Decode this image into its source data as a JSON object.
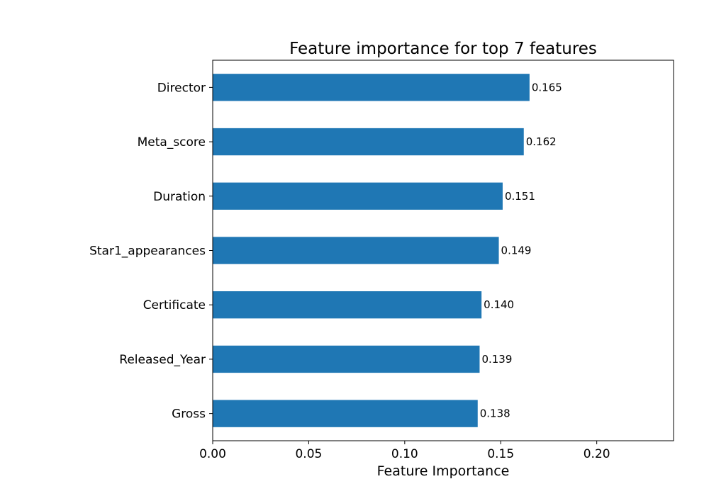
{
  "chart_data": {
    "type": "bar",
    "orientation": "horizontal",
    "title": "Feature importance for top 7 features",
    "xlabel": "Feature Importance",
    "ylabel": "",
    "categories": [
      "Director",
      "Meta_score",
      "Duration",
      "Star1_appearances",
      "Certificate",
      "Released_Year",
      "Gross"
    ],
    "values": [
      0.165,
      0.162,
      0.151,
      0.149,
      0.14,
      0.139,
      0.138
    ],
    "value_labels": [
      "0.165",
      "0.162",
      "0.151",
      "0.149",
      "0.140",
      "0.139",
      "0.138"
    ],
    "xlim": [
      0,
      0.24
    ],
    "x_ticks": [
      0,
      0.05,
      0.1,
      0.15,
      0.2
    ],
    "x_tick_labels": [
      "0.00",
      "0.05",
      "0.10",
      "0.15",
      "0.20"
    ],
    "grid": false,
    "legend": "none",
    "bar_color": "#1f77b4"
  }
}
